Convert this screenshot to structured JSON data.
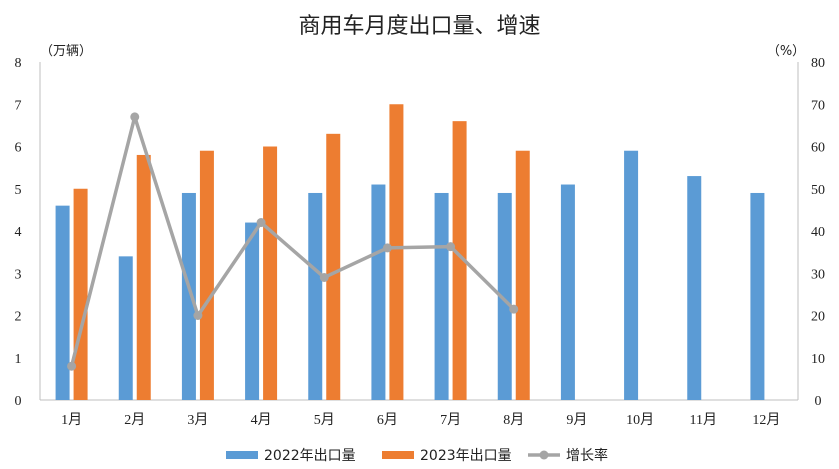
{
  "chart_data": {
    "type": "bar",
    "title": "商用车月度出口量、增速",
    "left_axis_unit": "（万辆）",
    "right_axis_unit": "（%）",
    "categories": [
      "1月",
      "2月",
      "3月",
      "4月",
      "5月",
      "6月",
      "7月",
      "8月",
      "9月",
      "10月",
      "11月",
      "12月"
    ],
    "ylim": [
      0,
      8
    ],
    "yticks": [
      0,
      1,
      2,
      3,
      4,
      5,
      6,
      7,
      8
    ],
    "y2lim": [
      0,
      80
    ],
    "y2ticks": [
      0,
      10,
      20,
      30,
      40,
      50,
      60,
      70,
      80
    ],
    "series": [
      {
        "name": "2022年出口量",
        "kind": "bar",
        "axis": "left",
        "color": "#5B9BD5",
        "values": [
          4.6,
          3.4,
          4.9,
          4.2,
          4.9,
          5.1,
          4.9,
          4.9,
          5.1,
          5.9,
          5.3,
          4.9
        ]
      },
      {
        "name": "2023年出口量",
        "kind": "bar",
        "axis": "left",
        "color": "#ED7D31",
        "values": [
          5.0,
          5.8,
          5.9,
          6.0,
          6.3,
          7.0,
          6.6,
          5.9,
          null,
          null,
          null,
          null
        ]
      },
      {
        "name": "增长率",
        "kind": "line",
        "axis": "right",
        "color": "#A5A5A5",
        "values": [
          8,
          67,
          20,
          42,
          29,
          36,
          36.3,
          21.5,
          null,
          null,
          null,
          null
        ]
      }
    ],
    "legend_position": "bottom",
    "grid": false
  }
}
